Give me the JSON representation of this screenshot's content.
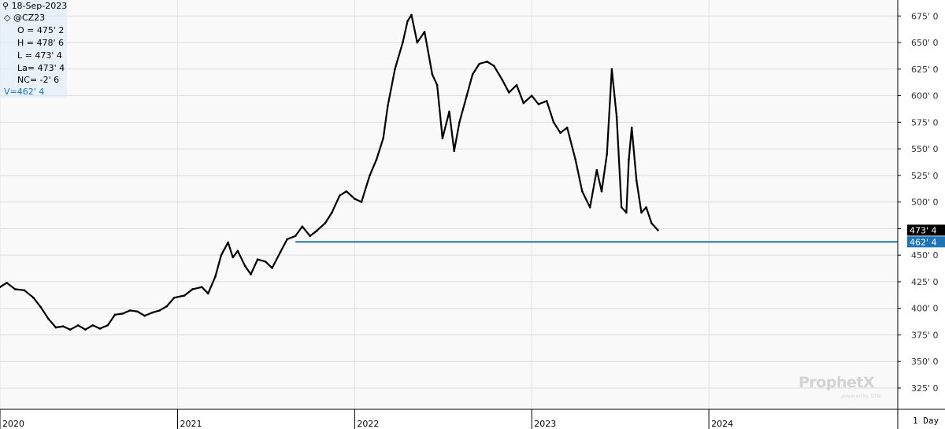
{
  "info": {
    "date": "18-Sep-2023",
    "symbol": "@CZ23",
    "open": "O = 475' 2",
    "high": "H = 478' 6",
    "low": "L = 473' 4",
    "last": "La= 473' 4",
    "net_change": "NC= -2' 6",
    "level_value": "V=462' 4"
  },
  "period": "1 Day",
  "watermark": {
    "brand": "ProphetX",
    "sub": "powered by DTN"
  },
  "colors": {
    "price_line": "#000000",
    "level_line": "#1f74b8",
    "last_tag": "#000000",
    "level_tag": "#1f74b8",
    "info_panel": "#ddebf7"
  },
  "chart_data": {
    "type": "line",
    "title": "",
    "xlabel": "",
    "ylabel": "",
    "xlim": [
      "2020-01-01",
      "2024-12-31"
    ],
    "ylim": [
      305,
      690
    ],
    "grid": true,
    "y_ticks": [
      325,
      350,
      375,
      400,
      425,
      450,
      475,
      500,
      525,
      550,
      575,
      600,
      625,
      650,
      675
    ],
    "y_tick_labels": [
      "325' 0",
      "350' 0",
      "375' 0",
      "400' 0",
      "425' 0",
      "450' 0",
      "475' 0",
      "500' 0",
      "525' 0",
      "550' 0",
      "575' 0",
      "600' 0",
      "625' 0",
      "650' 0",
      "675' 0"
    ],
    "x_ticks": [
      "2020-01-01",
      "2021-01-01",
      "2022-01-01",
      "2023-01-01",
      "2024-01-01"
    ],
    "x_tick_labels": [
      "2020",
      "2021",
      "2022",
      "2023",
      "2024"
    ],
    "series": [
      {
        "values": [
          [
            "2020-01-01",
            420
          ],
          [
            "2020-01-15",
            424
          ],
          [
            "2020-02-01",
            418
          ],
          [
            "2020-02-20",
            417
          ],
          [
            "2020-03-10",
            410
          ],
          [
            "2020-03-25",
            401
          ],
          [
            "2020-04-10",
            390
          ],
          [
            "2020-04-25",
            382
          ],
          [
            "2020-05-10",
            383
          ],
          [
            "2020-05-25",
            380
          ],
          [
            "2020-06-10",
            384
          ],
          [
            "2020-06-25",
            380
          ],
          [
            "2020-07-10",
            384
          ],
          [
            "2020-07-25",
            381
          ],
          [
            "2020-08-10",
            384
          ],
          [
            "2020-08-25",
            394
          ],
          [
            "2020-09-10",
            395
          ],
          [
            "2020-09-25",
            398
          ],
          [
            "2020-10-10",
            397
          ],
          [
            "2020-10-25",
            393
          ],
          [
            "2020-11-10",
            396
          ],
          [
            "2020-11-25",
            398
          ],
          [
            "2020-12-10",
            402
          ],
          [
            "2020-12-25",
            410
          ],
          [
            "2021-01-15",
            412
          ],
          [
            "2021-02-01",
            418
          ],
          [
            "2021-02-20",
            420
          ],
          [
            "2021-03-05",
            414
          ],
          [
            "2021-03-20",
            430
          ],
          [
            "2021-04-01",
            450
          ],
          [
            "2021-04-15",
            462
          ],
          [
            "2021-04-25",
            448
          ],
          [
            "2021-05-05",
            454
          ],
          [
            "2021-05-20",
            440
          ],
          [
            "2021-06-01",
            432
          ],
          [
            "2021-06-15",
            446
          ],
          [
            "2021-07-01",
            444
          ],
          [
            "2021-07-15",
            438
          ],
          [
            "2021-08-01",
            453
          ],
          [
            "2021-08-15",
            465
          ],
          [
            "2021-09-01",
            468
          ],
          [
            "2021-09-15",
            477
          ],
          [
            "2021-10-01",
            468
          ],
          [
            "2021-10-15",
            473
          ],
          [
            "2021-11-01",
            480
          ],
          [
            "2021-11-15",
            490
          ],
          [
            "2021-12-01",
            506
          ],
          [
            "2021-12-15",
            510
          ],
          [
            "2022-01-01",
            503
          ],
          [
            "2022-01-15",
            500
          ],
          [
            "2022-02-01",
            525
          ],
          [
            "2022-02-15",
            540
          ],
          [
            "2022-03-01",
            560
          ],
          [
            "2022-03-10",
            590
          ],
          [
            "2022-03-25",
            625
          ],
          [
            "2022-04-10",
            650
          ],
          [
            "2022-04-20",
            670
          ],
          [
            "2022-04-28",
            676
          ],
          [
            "2022-05-10",
            650
          ],
          [
            "2022-05-25",
            660
          ],
          [
            "2022-06-10",
            620
          ],
          [
            "2022-06-20",
            610
          ],
          [
            "2022-07-01",
            560
          ],
          [
            "2022-07-15",
            585
          ],
          [
            "2022-07-25",
            548
          ],
          [
            "2022-08-05",
            575
          ],
          [
            "2022-08-20",
            600
          ],
          [
            "2022-09-01",
            620
          ],
          [
            "2022-09-15",
            630
          ],
          [
            "2022-10-01",
            632
          ],
          [
            "2022-10-15",
            628
          ],
          [
            "2022-11-01",
            615
          ],
          [
            "2022-11-15",
            603
          ],
          [
            "2022-12-01",
            610
          ],
          [
            "2022-12-15",
            593
          ],
          [
            "2023-01-01",
            600
          ],
          [
            "2023-01-15",
            592
          ],
          [
            "2023-02-01",
            595
          ],
          [
            "2023-02-15",
            575
          ],
          [
            "2023-03-01",
            565
          ],
          [
            "2023-03-15",
            570
          ],
          [
            "2023-04-01",
            540
          ],
          [
            "2023-04-15",
            510
          ],
          [
            "2023-05-01",
            495
          ],
          [
            "2023-05-15",
            530
          ],
          [
            "2023-05-25",
            510
          ],
          [
            "2023-06-05",
            545
          ],
          [
            "2023-06-15",
            625
          ],
          [
            "2023-06-25",
            580
          ],
          [
            "2023-07-05",
            495
          ],
          [
            "2023-07-15",
            490
          ],
          [
            "2023-07-20",
            540
          ],
          [
            "2023-07-26",
            570
          ],
          [
            "2023-08-05",
            520
          ],
          [
            "2023-08-15",
            490
          ],
          [
            "2023-08-25",
            495
          ],
          [
            "2023-09-05",
            480
          ],
          [
            "2023-09-18",
            473.5
          ]
        ]
      }
    ],
    "horizontal_level": {
      "value": 462.5,
      "start": "2021-09-01",
      "label": "462' 4"
    },
    "last_value": {
      "value": 473.5,
      "label": "473' 4"
    }
  }
}
